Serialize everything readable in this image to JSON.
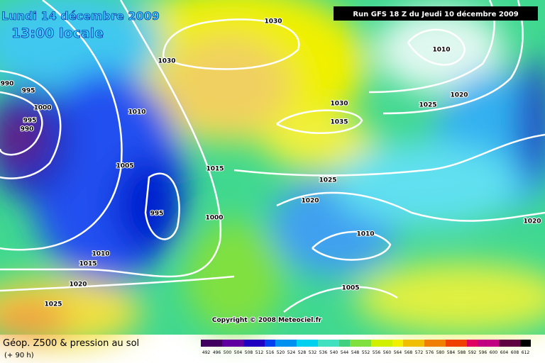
{
  "header": {
    "date": "Lundi 14 décembre 2009",
    "time": "13:00 locale",
    "run": "Run GFS 18 Z du Jeudi 10 décembre 2009"
  },
  "isobar_labels": [
    "990",
    "995",
    "1000",
    "995",
    "990",
    "1030",
    "1030",
    "1010",
    "1010",
    "1020",
    "1025",
    "1030",
    "1035",
    "1005",
    "1015",
    "1025",
    "1020",
    "995",
    "1000",
    "1010",
    "1020",
    "1010",
    "1015",
    "1005",
    "1020",
    "1025"
  ],
  "copyright": "Copyright © 2008 Meteociel.fr",
  "footer": {
    "title": "Géop. Z500 & pression au sol",
    "lead": "(+ 90 h)"
  },
  "legend": {
    "scale": [
      492,
      496,
      500,
      504,
      508,
      512,
      516,
      520,
      524,
      528,
      532,
      536,
      540,
      544,
      548,
      552,
      556,
      560,
      564,
      568,
      572,
      576,
      580,
      584,
      588,
      592,
      596,
      600,
      604,
      608,
      612
    ]
  }
}
